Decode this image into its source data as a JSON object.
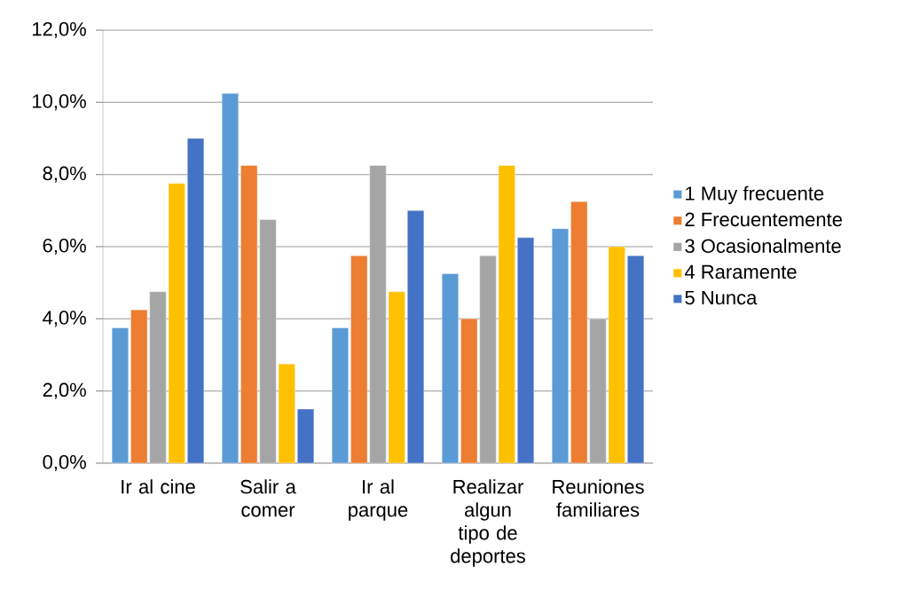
{
  "chart_data": {
    "type": "bar",
    "categories": [
      "Ir al cine",
      "Salir a comer",
      "Ir al parque",
      "Realizar algun tipo de deportes",
      "Reuniones familiares"
    ],
    "series": [
      {
        "name": "1 Muy frecuente",
        "color": "#5b9bd5",
        "values": [
          3.75,
          10.25,
          3.75,
          5.25,
          6.5
        ]
      },
      {
        "name": "2 Frecuentemente",
        "color": "#ed7d31",
        "values": [
          4.25,
          8.25,
          5.75,
          4.0,
          7.25
        ]
      },
      {
        "name": "3 Ocasionalmente",
        "color": "#a5a5a5",
        "values": [
          4.75,
          6.75,
          8.25,
          5.75,
          4.0
        ]
      },
      {
        "name": "4 Raramente",
        "color": "#ffc000",
        "values": [
          7.75,
          2.75,
          4.75,
          8.25,
          6.0
        ]
      },
      {
        "name": "5 Nunca",
        "color": "#4472c4",
        "values": [
          9.0,
          1.5,
          7.0,
          6.25,
          5.75
        ]
      }
    ],
    "ylim": [
      0,
      12
    ],
    "yticks": [
      {
        "value": 0,
        "label": "0,0%"
      },
      {
        "value": 2,
        "label": "2,0%"
      },
      {
        "value": 4,
        "label": "4,0%"
      },
      {
        "value": 6,
        "label": "6,0%"
      },
      {
        "value": 8,
        "label": "8,0%"
      },
      {
        "value": 10,
        "label": "10,0%"
      },
      {
        "value": 12,
        "label": "12,0%"
      }
    ],
    "grid": "y",
    "legend": "right"
  }
}
